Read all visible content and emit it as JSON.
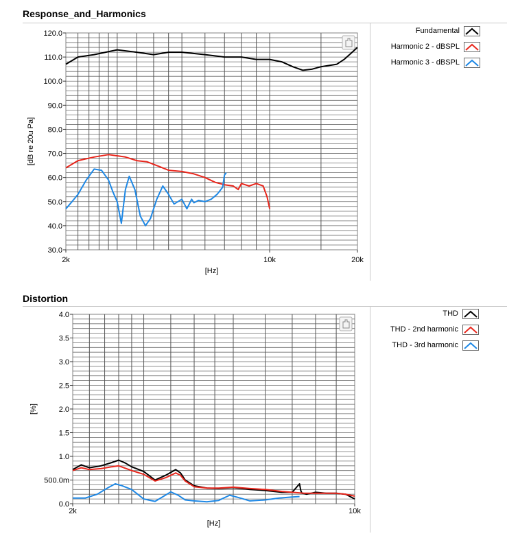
{
  "panels": [
    {
      "title": "Response_and_Harmonics",
      "legend": [
        {
          "label": "Fundamental",
          "color": "#000000"
        },
        {
          "label": "Harmonic 2 - dBSPL",
          "color": "#e8261c"
        },
        {
          "label": "Harmonic 3 - dBSPL",
          "color": "#1e88e5"
        }
      ]
    },
    {
      "title": "Distortion",
      "legend": [
        {
          "label": "THD",
          "color": "#000000"
        },
        {
          "label": "THD - 2nd harmonic",
          "color": "#e8261c"
        },
        {
          "label": "THD - 3rd harmonic",
          "color": "#1e88e5"
        }
      ]
    }
  ],
  "chart_data": [
    {
      "type": "line",
      "title": "Response_and_Harmonics",
      "xlabel": "[Hz]",
      "ylabel": "[dB re 20u Pa]",
      "x_scale": "log",
      "xlim": [
        2000,
        20000
      ],
      "ylim": [
        30,
        120
      ],
      "x_ticks": [
        2000,
        10000,
        20000
      ],
      "x_tick_labels": [
        "2k",
        "10k",
        "20k"
      ],
      "y_ticks": [
        30,
        40,
        50,
        60,
        70,
        80,
        90,
        100,
        110,
        120
      ],
      "y_tick_labels": [
        "30.0",
        "40.0",
        "50.0",
        "60.0",
        "70.0",
        "80.0",
        "90.0",
        "100.0",
        "110.0",
        "120.0"
      ],
      "grid": true,
      "legend_position": "right",
      "series": [
        {
          "name": "Fundamental",
          "color": "#000000",
          "x": [
            2000,
            2200,
            2500,
            3000,
            3500,
            4000,
            4500,
            5000,
            6000,
            7000,
            8000,
            9000,
            10000,
            11000,
            12000,
            13000,
            14000,
            15000,
            16000,
            17000,
            18000,
            19000,
            20000
          ],
          "y": [
            107,
            110,
            111,
            113,
            112,
            111,
            112,
            112,
            111,
            110,
            110,
            109,
            109,
            108,
            106,
            104.5,
            105,
            106,
            106.5,
            107,
            109,
            111.5,
            114
          ]
        },
        {
          "name": "Harmonic 2 - dBSPL",
          "color": "#e8261c",
          "x": [
            2000,
            2200,
            2500,
            2800,
            3200,
            3500,
            3800,
            4200,
            4500,
            5000,
            5500,
            6000,
            6500,
            7000,
            7500,
            7800,
            8000,
            8500,
            9000,
            9500,
            9800,
            10000
          ],
          "y": [
            64,
            67,
            68.5,
            69.5,
            68.5,
            67,
            66.5,
            64.5,
            63,
            62.5,
            61.5,
            60,
            58,
            57,
            56.5,
            55,
            57.5,
            56.5,
            57.5,
            56.5,
            52,
            47
          ]
        },
        {
          "name": "Harmonic 3 - dBSPL",
          "color": "#1e88e5",
          "x": [
            2000,
            2100,
            2200,
            2350,
            2500,
            2650,
            2800,
            2900,
            3000,
            3100,
            3200,
            3300,
            3450,
            3600,
            3750,
            3900,
            4100,
            4300,
            4500,
            4700,
            5000,
            5200,
            5400,
            5500,
            5700,
            6000,
            6300,
            6600,
            6900,
            7000,
            7100
          ],
          "y": [
            47,
            50,
            53,
            59,
            63.5,
            63,
            59,
            54,
            50,
            41,
            55,
            60.5,
            55,
            44,
            40,
            43,
            51,
            56.5,
            53,
            49,
            51,
            47,
            51,
            49.5,
            50.5,
            50,
            51,
            53,
            56,
            61,
            62
          ]
        }
      ]
    },
    {
      "type": "line",
      "title": "Distortion",
      "xlabel": "[Hz]",
      "ylabel": "[%]",
      "x_scale": "log",
      "xlim": [
        2000,
        10000
      ],
      "ylim": [
        0,
        4
      ],
      "x_ticks": [
        2000,
        10000
      ],
      "x_tick_labels": [
        "2k",
        "10k"
      ],
      "y_ticks": [
        0,
        0.5,
        1,
        1.5,
        2,
        2.5,
        3,
        3.5,
        4
      ],
      "y_tick_labels": [
        "0.0",
        "500.0m",
        "1.0",
        "1.5",
        "2.0",
        "2.5",
        "3.0",
        "3.5",
        "4.0"
      ],
      "grid": true,
      "legend_position": "right",
      "series": [
        {
          "name": "THD",
          "color": "#000000",
          "x": [
            2000,
            2100,
            2200,
            2350,
            2500,
            2600,
            2700,
            2800,
            3000,
            3200,
            3400,
            3600,
            3700,
            3800,
            4000,
            4300,
            4600,
            5000,
            5500,
            6000,
            6600,
            7000,
            7300,
            7350,
            7400,
            7600,
            8000,
            8500,
            9000,
            9500,
            10000
          ],
          "y": [
            0.72,
            0.82,
            0.76,
            0.8,
            0.87,
            0.92,
            0.86,
            0.78,
            0.68,
            0.5,
            0.6,
            0.72,
            0.65,
            0.5,
            0.38,
            0.33,
            0.32,
            0.34,
            0.3,
            0.28,
            0.24,
            0.24,
            0.42,
            0.28,
            0.22,
            0.2,
            0.24,
            0.22,
            0.22,
            0.2,
            0.1
          ]
        },
        {
          "name": "THD - 2nd harmonic",
          "color": "#e8261c",
          "x": [
            2000,
            2100,
            2200,
            2350,
            2500,
            2600,
            2700,
            2800,
            3000,
            3200,
            3400,
            3600,
            3700,
            3800,
            4000,
            4300,
            4600,
            5000,
            5500,
            6000,
            6600,
            7000,
            7500,
            8000,
            8500,
            9000,
            9500,
            10000
          ],
          "y": [
            0.7,
            0.76,
            0.72,
            0.74,
            0.78,
            0.8,
            0.75,
            0.7,
            0.62,
            0.48,
            0.55,
            0.65,
            0.6,
            0.48,
            0.36,
            0.33,
            0.33,
            0.35,
            0.32,
            0.3,
            0.26,
            0.24,
            0.22,
            0.22,
            0.22,
            0.22,
            0.2,
            0.16
          ]
        },
        {
          "name": "THD - 3rd harmonic",
          "color": "#1e88e5",
          "x": [
            2000,
            2150,
            2300,
            2450,
            2550,
            2650,
            2800,
            3000,
            3200,
            3350,
            3500,
            3650,
            3800,
            4000,
            4300,
            4600,
            4900,
            5200,
            5500,
            6000,
            6500,
            7000,
            7300
          ],
          "y": [
            0.12,
            0.12,
            0.2,
            0.34,
            0.42,
            0.38,
            0.3,
            0.1,
            0.05,
            0.15,
            0.25,
            0.18,
            0.08,
            0.06,
            0.04,
            0.07,
            0.18,
            0.12,
            0.06,
            0.08,
            0.12,
            0.14,
            0.15
          ]
        }
      ]
    }
  ]
}
